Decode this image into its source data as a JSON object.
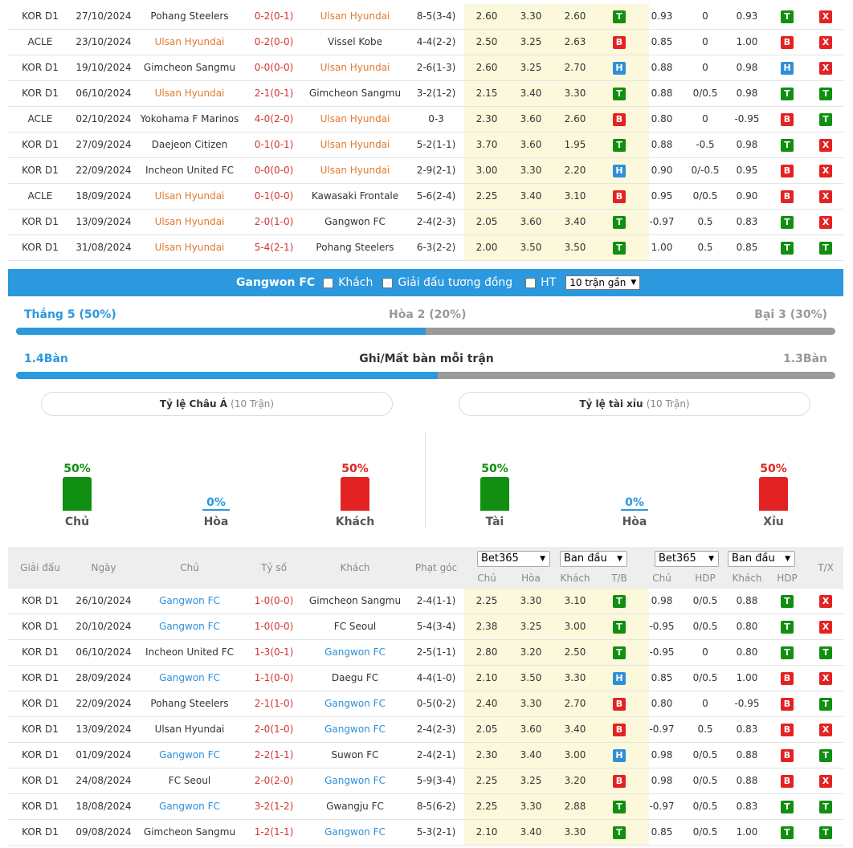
{
  "top_rows": [
    {
      "comp": "KOR D1",
      "date": "27/10/2024",
      "home": "Pohang Steelers",
      "home_hl": false,
      "score": "0-2(0-1)",
      "away": "Ulsan Hyundai",
      "away_hl": true,
      "corner": "8-5(3-4)",
      "o1": "2.60",
      "o2": "3.30",
      "o3": "2.60",
      "r1": "T",
      "a1": "0.93",
      "a2": "0",
      "a3": "0.93",
      "r2": "T",
      "r3": "X"
    },
    {
      "comp": "ACLE",
      "date": "23/10/2024",
      "home": "Ulsan Hyundai",
      "home_hl": true,
      "score": "0-2(0-0)",
      "away": "Vissel Kobe",
      "away_hl": false,
      "corner": "4-4(2-2)",
      "o1": "2.50",
      "o2": "3.25",
      "o3": "2.63",
      "r1": "B",
      "a1": "0.85",
      "a2": "0",
      "a3": "1.00",
      "r2": "B",
      "r3": "X"
    },
    {
      "comp": "KOR D1",
      "date": "19/10/2024",
      "home": "Gimcheon Sangmu",
      "home_hl": false,
      "score": "0-0(0-0)",
      "away": "Ulsan Hyundai",
      "away_hl": true,
      "corner": "2-6(1-3)",
      "o1": "2.60",
      "o2": "3.25",
      "o3": "2.70",
      "r1": "H",
      "a1": "0.88",
      "a2": "0",
      "a3": "0.98",
      "r2": "H",
      "r3": "X"
    },
    {
      "comp": "KOR D1",
      "date": "06/10/2024",
      "home": "Ulsan Hyundai",
      "home_hl": true,
      "score": "2-1(0-1)",
      "away": "Gimcheon Sangmu",
      "away_hl": false,
      "corner": "3-2(1-2)",
      "o1": "2.15",
      "o2": "3.40",
      "o3": "3.30",
      "r1": "T",
      "a1": "0.88",
      "a2": "0/0.5",
      "a3": "0.98",
      "r2": "T",
      "r3": "T"
    },
    {
      "comp": "ACLE",
      "date": "02/10/2024",
      "home": "Yokohama F Marinos",
      "home_hl": false,
      "score": "4-0(2-0)",
      "away": "Ulsan Hyundai",
      "away_hl": true,
      "corner": "0-3",
      "o1": "2.30",
      "o2": "3.60",
      "o3": "2.60",
      "r1": "B",
      "a1": "0.80",
      "a2": "0",
      "a3": "-0.95",
      "r2": "B",
      "r3": "T"
    },
    {
      "comp": "KOR D1",
      "date": "27/09/2024",
      "home": "Daejeon Citizen",
      "home_hl": false,
      "score": "0-1(0-1)",
      "away": "Ulsan Hyundai",
      "away_hl": true,
      "corner": "5-2(1-1)",
      "o1": "3.70",
      "o2": "3.60",
      "o3": "1.95",
      "r1": "T",
      "a1": "0.88",
      "a2": "-0.5",
      "a3": "0.98",
      "r2": "T",
      "r3": "X"
    },
    {
      "comp": "KOR D1",
      "date": "22/09/2024",
      "home": "Incheon United FC",
      "home_hl": false,
      "score": "0-0(0-0)",
      "away": "Ulsan Hyundai",
      "away_hl": true,
      "corner": "2-9(2-1)",
      "o1": "3.00",
      "o2": "3.30",
      "o3": "2.20",
      "r1": "H",
      "a1": "0.90",
      "a2": "0/-0.5",
      "a3": "0.95",
      "r2": "B",
      "r3": "X"
    },
    {
      "comp": "ACLE",
      "date": "18/09/2024",
      "home": "Ulsan Hyundai",
      "home_hl": true,
      "score": "0-1(0-0)",
      "away": "Kawasaki Frontale",
      "away_hl": false,
      "corner": "5-6(2-4)",
      "o1": "2.25",
      "o2": "3.40",
      "o3": "3.10",
      "r1": "B",
      "a1": "0.95",
      "a2": "0/0.5",
      "a3": "0.90",
      "r2": "B",
      "r3": "X"
    },
    {
      "comp": "KOR D1",
      "date": "13/09/2024",
      "home": "Ulsan Hyundai",
      "home_hl": true,
      "score": "2-0(1-0)",
      "away": "Gangwon FC",
      "away_hl": false,
      "corner": "2-4(2-3)",
      "o1": "2.05",
      "o2": "3.60",
      "o3": "3.40",
      "r1": "T",
      "a1": "-0.97",
      "a2": "0.5",
      "a3": "0.83",
      "r2": "T",
      "r3": "X"
    },
    {
      "comp": "KOR D1",
      "date": "31/08/2024",
      "home": "Ulsan Hyundai",
      "home_hl": true,
      "score": "5-4(2-1)",
      "away": "Pohang Steelers",
      "away_hl": false,
      "corner": "6-3(2-2)",
      "o1": "2.00",
      "o2": "3.50",
      "o3": "3.50",
      "r1": "T",
      "a1": "1.00",
      "a2": "0.5",
      "a3": "0.85",
      "r2": "T",
      "r3": "T"
    }
  ],
  "filter": {
    "team": "Gangwon FC",
    "away_label": "Khách",
    "same_league_label": "Giải đấu tương đồng",
    "ht_label": "HT",
    "recent_select": "10 trận gần"
  },
  "summary": {
    "win": "Thắng 5 (50%)",
    "draw": "Hòa 2 (20%)",
    "loss": "Bại 3 (30%)",
    "win_fraction": 0.5,
    "goals_for": "1.4Bàn",
    "goals_title": "Ghi/Mất bàn mỗi trận",
    "goals_against": "1.3Bàn",
    "goals_fraction": 0.515
  },
  "handicap": {
    "title": "Tỷ lệ Châu Á",
    "sub": "(10 Trận)",
    "home": {
      "pct": "50%",
      "value": 50,
      "label": "Chủ"
    },
    "draw": {
      "pct": "0%",
      "value": 0,
      "label": "Hòa"
    },
    "away": {
      "pct": "50%",
      "value": 50,
      "label": "Khách"
    }
  },
  "overunder": {
    "title": "Tỷ lệ tài xỉu",
    "sub": "(10 Trận)",
    "over": {
      "pct": "50%",
      "value": 50,
      "label": "Tài"
    },
    "draw": {
      "pct": "0%",
      "value": 0,
      "label": "Hòa"
    },
    "under": {
      "pct": "50%",
      "value": 50,
      "label": "Xỉu"
    }
  },
  "header": {
    "comp": "Giải đấu",
    "date": "Ngày",
    "home": "Chủ",
    "score": "Tỷ số",
    "away": "Khách",
    "corner": "Phạt góc",
    "book1": "Bet365",
    "type1": "Ban đầu",
    "book2": "Bet365",
    "type2": "Ban đầu",
    "sub_home": "Chủ",
    "sub_draw": "Hòa",
    "sub_away": "Khách",
    "sub_tb": "T/B",
    "sub_home2": "Chủ",
    "sub_hdp": "HDP",
    "sub_away2": "Khách",
    "sub_hdp2": "HDP",
    "tx": "T/X"
  },
  "bottom_rows": [
    {
      "comp": "KOR D1",
      "date": "26/10/2024",
      "home": "Gangwon FC",
      "home_hl": true,
      "score": "1-0(0-0)",
      "away": "Gimcheon Sangmu",
      "away_hl": false,
      "corner": "2-4(1-1)",
      "o1": "2.25",
      "o2": "3.30",
      "o3": "3.10",
      "r1": "T",
      "a1": "0.98",
      "a2": "0/0.5",
      "a3": "0.88",
      "r2": "T",
      "r3": "X"
    },
    {
      "comp": "KOR D1",
      "date": "20/10/2024",
      "home": "Gangwon FC",
      "home_hl": true,
      "score": "1-0(0-0)",
      "away": "FC Seoul",
      "away_hl": false,
      "corner": "5-4(3-4)",
      "o1": "2.38",
      "o2": "3.25",
      "o3": "3.00",
      "r1": "T",
      "a1": "-0.95",
      "a2": "0/0.5",
      "a3": "0.80",
      "r2": "T",
      "r3": "X"
    },
    {
      "comp": "KOR D1",
      "date": "06/10/2024",
      "home": "Incheon United FC",
      "home_hl": false,
      "score": "1-3(0-1)",
      "away": "Gangwon FC",
      "away_hl": true,
      "corner": "2-5(1-1)",
      "o1": "2.80",
      "o2": "3.20",
      "o3": "2.50",
      "r1": "T",
      "a1": "-0.95",
      "a2": "0",
      "a3": "0.80",
      "r2": "T",
      "r3": "T"
    },
    {
      "comp": "KOR D1",
      "date": "28/09/2024",
      "home": "Gangwon FC",
      "home_hl": true,
      "score": "1-1(0-0)",
      "away": "Daegu FC",
      "away_hl": false,
      "corner": "4-4(1-0)",
      "o1": "2.10",
      "o2": "3.50",
      "o3": "3.30",
      "r1": "H",
      "a1": "0.85",
      "a2": "0/0.5",
      "a3": "1.00",
      "r2": "B",
      "r3": "X"
    },
    {
      "comp": "KOR D1",
      "date": "22/09/2024",
      "home": "Pohang Steelers",
      "home_hl": false,
      "score": "2-1(1-0)",
      "away": "Gangwon FC",
      "away_hl": true,
      "corner": "0-5(0-2)",
      "o1": "2.40",
      "o2": "3.30",
      "o3": "2.70",
      "r1": "B",
      "a1": "0.80",
      "a2": "0",
      "a3": "-0.95",
      "r2": "B",
      "r3": "T"
    },
    {
      "comp": "KOR D1",
      "date": "13/09/2024",
      "home": "Ulsan Hyundai",
      "home_hl": false,
      "score": "2-0(1-0)",
      "away": "Gangwon FC",
      "away_hl": true,
      "corner": "2-4(2-3)",
      "o1": "2.05",
      "o2": "3.60",
      "o3": "3.40",
      "r1": "B",
      "a1": "-0.97",
      "a2": "0.5",
      "a3": "0.83",
      "r2": "B",
      "r3": "X"
    },
    {
      "comp": "KOR D1",
      "date": "01/09/2024",
      "home": "Gangwon FC",
      "home_hl": true,
      "score": "2-2(1-1)",
      "away": "Suwon FC",
      "away_hl": false,
      "corner": "2-4(2-1)",
      "o1": "2.30",
      "o2": "3.40",
      "o3": "3.00",
      "r1": "H",
      "a1": "0.98",
      "a2": "0/0.5",
      "a3": "0.88",
      "r2": "B",
      "r3": "T"
    },
    {
      "comp": "KOR D1",
      "date": "24/08/2024",
      "home": "FC Seoul",
      "home_hl": false,
      "score": "2-0(2-0)",
      "away": "Gangwon FC",
      "away_hl": true,
      "corner": "5-9(3-4)",
      "o1": "2.25",
      "o2": "3.25",
      "o3": "3.20",
      "r1": "B",
      "a1": "0.98",
      "a2": "0/0.5",
      "a3": "0.88",
      "r2": "B",
      "r3": "X"
    },
    {
      "comp": "KOR D1",
      "date": "18/08/2024",
      "home": "Gangwon FC",
      "home_hl": true,
      "score": "3-2(1-2)",
      "away": "Gwangju FC",
      "away_hl": false,
      "corner": "8-5(6-2)",
      "o1": "2.25",
      "o2": "3.30",
      "o3": "2.88",
      "r1": "T",
      "a1": "-0.97",
      "a2": "0/0.5",
      "a3": "0.83",
      "r2": "T",
      "r3": "T"
    },
    {
      "comp": "KOR D1",
      "date": "09/08/2024",
      "home": "Gimcheon Sangmu",
      "home_hl": false,
      "score": "1-2(1-1)",
      "away": "Gangwon FC",
      "away_hl": true,
      "corner": "5-3(2-1)",
      "o1": "2.10",
      "o2": "3.40",
      "o3": "3.30",
      "r1": "T",
      "a1": "0.85",
      "a2": "0/0.5",
      "a3": "1.00",
      "r2": "T",
      "r3": "T"
    }
  ],
  "colors": {
    "accent_blue": "#2c98dd",
    "highlight_orange": "#e07a2f",
    "green": "#108f10",
    "red": "#e32323",
    "odds_bg": "#fcf8dc"
  }
}
